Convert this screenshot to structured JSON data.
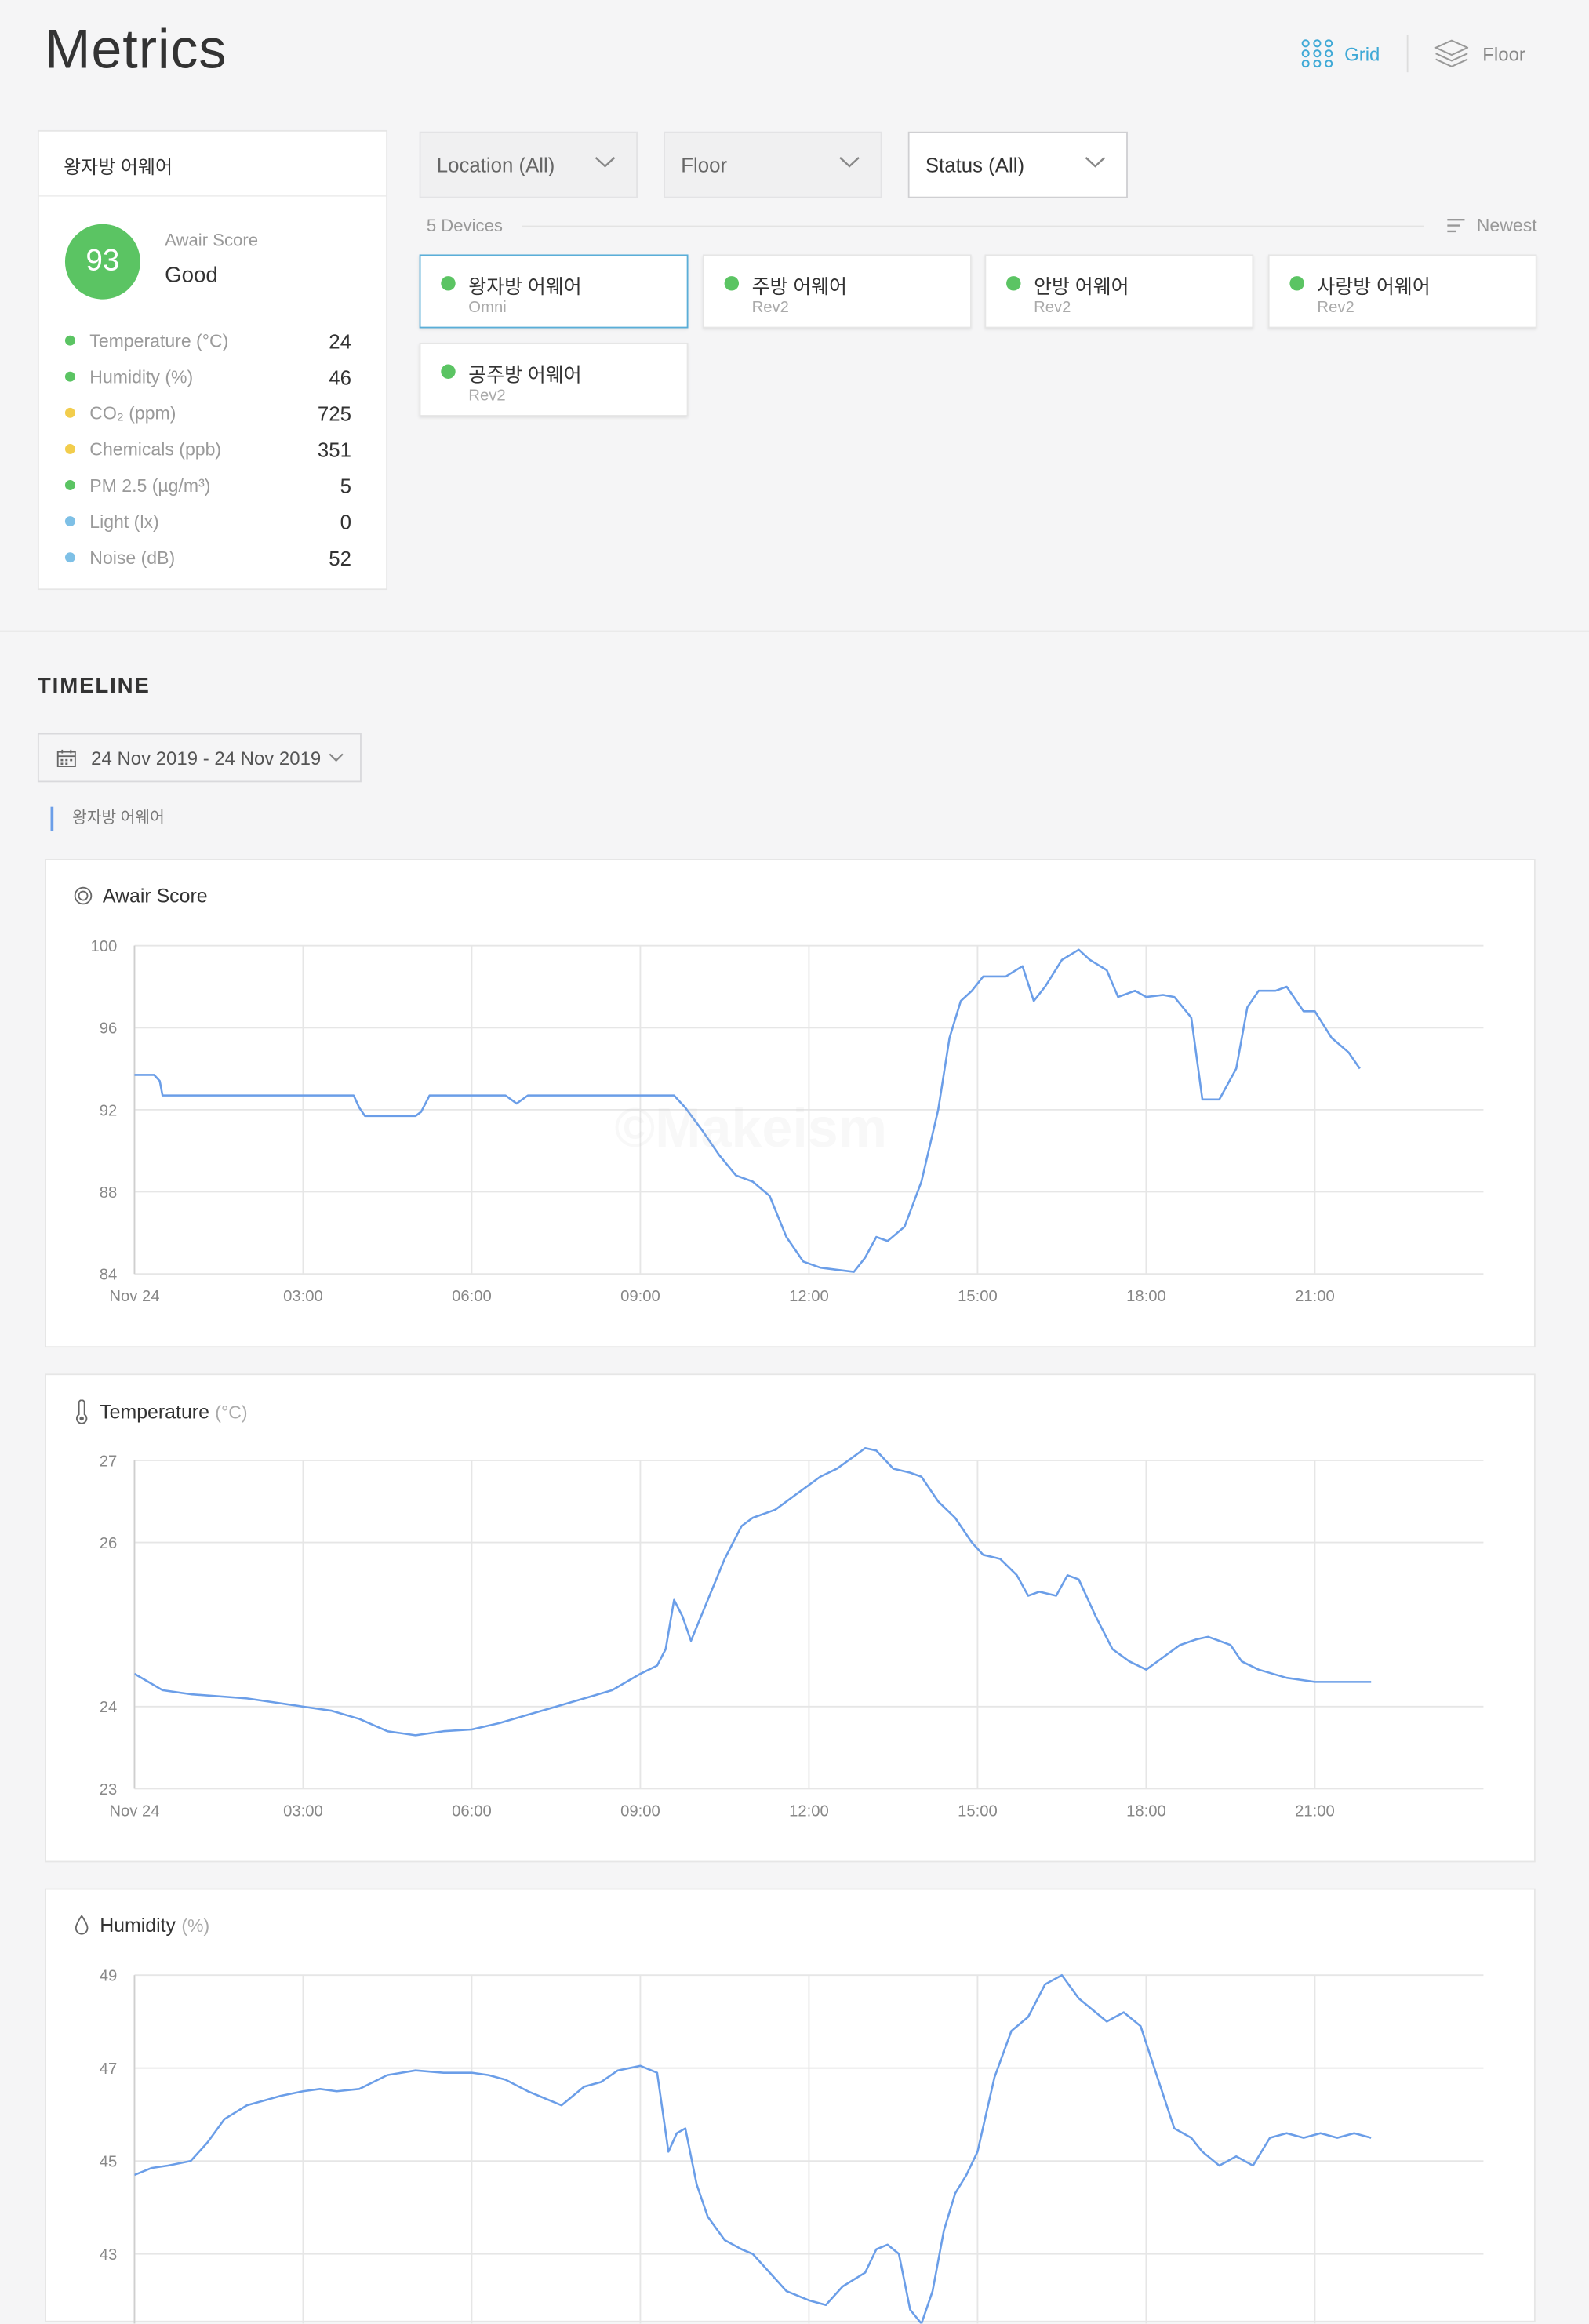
{
  "page": {
    "title": "Metrics"
  },
  "view_toggle": {
    "grid_label": "Grid",
    "floor_label": "Floor",
    "active": "grid"
  },
  "summary": {
    "device_name": "왕자방 어웨어",
    "score": "93",
    "score_title": "Awair Score",
    "score_status": "Good",
    "metrics": [
      {
        "label": "Temperature (°C)",
        "value": "24",
        "dot_color": "#5bc463"
      },
      {
        "label": "Humidity (%)",
        "value": "46",
        "dot_color": "#5bc463"
      },
      {
        "label": "CO₂ (ppm)",
        "value": "725",
        "dot_color": "#f2cd4c"
      },
      {
        "label": "Chemicals (ppb)",
        "value": "351",
        "dot_color": "#f2cd4c"
      },
      {
        "label": "PM 2.5 (µg/m³)",
        "value": "5",
        "dot_color": "#5bc463"
      },
      {
        "label": "Light (lx)",
        "value": "0",
        "dot_color": "#7ec0e6"
      },
      {
        "label": "Noise (dB)",
        "value": "52",
        "dot_color": "#7ec0e6"
      }
    ]
  },
  "filters": {
    "location": "Location (All)",
    "floor": "Floor",
    "status": "Status (All)"
  },
  "devices": {
    "count_label": "5 Devices",
    "sort_label": "Newest",
    "items": [
      {
        "name": "왕자방 어웨어",
        "model": "Omni"
      },
      {
        "name": "주방 어웨어",
        "model": "Rev2"
      },
      {
        "name": "안방 어웨어",
        "model": "Rev2"
      },
      {
        "name": "사랑방 어웨어",
        "model": "Rev2"
      },
      {
        "name": "공주방 어웨어",
        "model": "Rev2"
      }
    ]
  },
  "timeline": {
    "title": "TIMELINE",
    "date_range": "24 Nov 2019 - 24 Nov 2019",
    "device_tag": "왕자방 어웨어"
  },
  "watermark": "©Makeism",
  "colors": {
    "accent": "#3fa9d6",
    "good": "#5bc463",
    "warn": "#f2cd4c",
    "info": "#7ec0e6",
    "line": "#6b9ee8"
  },
  "chart_data": [
    {
      "type": "line",
      "title": "Awair Score",
      "unit": "",
      "icon": "awair-score-icon",
      "x_tick_labels": [
        "Nov 24",
        "03:00",
        "06:00",
        "09:00",
        "12:00",
        "15:00",
        "18:00",
        "21:00"
      ],
      "y_ticks": [
        84,
        88,
        92,
        96,
        100
      ],
      "ylim": [
        84,
        100
      ],
      "x_hours_max": 24,
      "grid": true,
      "series": [
        {
          "x_hours": [
            0,
            0.35,
            0.45,
            0.5,
            1,
            2,
            3,
            3.9,
            4.0,
            4.1,
            5,
            5.1,
            5.25,
            6,
            6.6,
            6.8,
            7,
            8,
            9,
            9.3,
            9.6,
            9.8,
            10.1,
            10.4,
            10.7,
            11,
            11.3,
            11.6,
            11.9,
            12.2,
            12.5,
            12.8,
            13,
            13.2,
            13.4,
            13.7,
            14,
            14.3,
            14.5,
            14.7,
            14.9,
            15.1,
            15.5,
            15.8,
            16.0,
            16.2,
            16.5,
            16.8,
            17.0,
            17.3,
            17.5,
            17.8,
            18.0,
            18.3,
            18.5,
            18.8,
            19.0,
            19.3,
            19.6,
            19.8,
            20.0,
            20.3,
            20.5,
            20.8,
            21.0,
            21.3,
            21.6,
            21.8
          ],
          "values": [
            93.7,
            93.7,
            93.4,
            92.7,
            92.7,
            92.7,
            92.7,
            92.7,
            92.1,
            91.7,
            91.7,
            91.9,
            92.7,
            92.7,
            92.7,
            92.3,
            92.7,
            92.7,
            92.7,
            92.7,
            92.7,
            92.1,
            91.0,
            89.8,
            88.8,
            88.5,
            87.8,
            85.8,
            84.6,
            84.3,
            84.2,
            84.1,
            84.8,
            85.8,
            85.6,
            86.3,
            88.5,
            92.0,
            95.5,
            97.3,
            97.8,
            98.5,
            98.5,
            99.0,
            97.3,
            98.0,
            99.3,
            99.8,
            99.3,
            98.8,
            97.5,
            97.8,
            97.5,
            97.6,
            97.5,
            96.5,
            92.5,
            92.5,
            94.0,
            97.0,
            97.8,
            97.8,
            98.0,
            96.8,
            96.8,
            95.5,
            94.8,
            94.0
          ]
        }
      ]
    },
    {
      "type": "line",
      "title": "Temperature",
      "unit": "(°C)",
      "icon": "thermometer-icon",
      "x_tick_labels": [
        "Nov 24",
        "03:00",
        "06:00",
        "09:00",
        "12:00",
        "15:00",
        "18:00",
        "21:00"
      ],
      "y_ticks": [
        23,
        24,
        26,
        27
      ],
      "ylim": [
        23,
        27
      ],
      "x_hours_max": 24,
      "grid": true,
      "series": [
        {
          "x_hours": [
            0,
            0.5,
            1,
            2,
            3,
            3.5,
            4,
            4.5,
            5,
            5.5,
            6,
            6.5,
            7,
            7.5,
            8,
            8.5,
            9,
            9.3,
            9.45,
            9.6,
            9.75,
            9.9,
            10.2,
            10.5,
            10.8,
            11,
            11.4,
            11.8,
            12.2,
            12.5,
            12.8,
            13.0,
            13.2,
            13.5,
            13.8,
            14.0,
            14.3,
            14.6,
            14.9,
            15.1,
            15.4,
            15.7,
            15.9,
            16.1,
            16.4,
            16.6,
            16.8,
            17.1,
            17.4,
            17.7,
            18.0,
            18.3,
            18.6,
            18.9,
            19.1,
            19.3,
            19.5,
            19.7,
            20.0,
            20.5,
            21.0,
            21.5,
            22.0
          ],
          "values": [
            24.4,
            24.2,
            24.15,
            24.1,
            24.0,
            23.95,
            23.85,
            23.7,
            23.65,
            23.7,
            23.72,
            23.8,
            23.9,
            24.0,
            24.1,
            24.2,
            24.4,
            24.5,
            24.7,
            25.3,
            25.1,
            24.8,
            25.3,
            25.8,
            26.2,
            26.3,
            26.4,
            26.6,
            26.8,
            26.9,
            27.05,
            27.15,
            27.12,
            26.9,
            26.85,
            26.8,
            26.5,
            26.3,
            26.0,
            25.85,
            25.8,
            25.6,
            25.35,
            25.4,
            25.35,
            25.6,
            25.55,
            25.1,
            24.7,
            24.55,
            24.45,
            24.6,
            24.75,
            24.82,
            24.85,
            24.8,
            24.75,
            24.55,
            24.45,
            24.35,
            24.3,
            24.3,
            24.3
          ]
        }
      ]
    },
    {
      "type": "line",
      "title": "Humidity",
      "unit": "(%)",
      "icon": "droplet-icon",
      "x_tick_labels": [],
      "y_ticks": [
        43,
        45,
        47,
        49
      ],
      "ylim": [
        41.5,
        49
      ],
      "x_hours_max": 24,
      "grid": true,
      "series": [
        {
          "x_hours": [
            0,
            0.3,
            0.6,
            1,
            1.3,
            1.6,
            2,
            2.3,
            2.6,
            3,
            3.3,
            3.6,
            4,
            4.5,
            5,
            5.5,
            6,
            6.3,
            6.6,
            7,
            7.3,
            7.6,
            8,
            8.3,
            8.6,
            9,
            9.3,
            9.5,
            9.65,
            9.8,
            10,
            10.2,
            10.5,
            10.8,
            11,
            11.3,
            11.6,
            12,
            12.3,
            12.6,
            13,
            13.2,
            13.4,
            13.6,
            13.8,
            14,
            14.2,
            14.4,
            14.6,
            14.8,
            15,
            15.3,
            15.6,
            15.9,
            16.2,
            16.5,
            16.8,
            17.0,
            17.3,
            17.6,
            17.9,
            18.2,
            18.5,
            18.8,
            19.0,
            19.3,
            19.6,
            19.9,
            20.2,
            20.5,
            20.8,
            21.1,
            21.4,
            21.7,
            22.0
          ],
          "values": [
            44.7,
            44.85,
            44.9,
            45.0,
            45.4,
            45.9,
            46.2,
            46.3,
            46.4,
            46.5,
            46.55,
            46.5,
            46.55,
            46.85,
            46.95,
            46.9,
            46.9,
            46.85,
            46.75,
            46.5,
            46.35,
            46.2,
            46.6,
            46.7,
            46.95,
            47.05,
            46.9,
            45.2,
            45.6,
            45.7,
            44.5,
            43.8,
            43.3,
            43.1,
            43.0,
            42.6,
            42.2,
            42.0,
            41.9,
            42.3,
            42.6,
            43.1,
            43.2,
            43.0,
            41.8,
            41.5,
            42.2,
            43.5,
            44.3,
            44.7,
            45.2,
            46.8,
            47.8,
            48.1,
            48.8,
            49.0,
            48.5,
            48.3,
            48.0,
            48.2,
            47.9,
            46.8,
            45.7,
            45.5,
            45.2,
            44.9,
            45.1,
            44.9,
            45.5,
            45.6,
            45.5,
            45.6,
            45.5,
            45.6,
            45.5
          ]
        }
      ]
    }
  ]
}
